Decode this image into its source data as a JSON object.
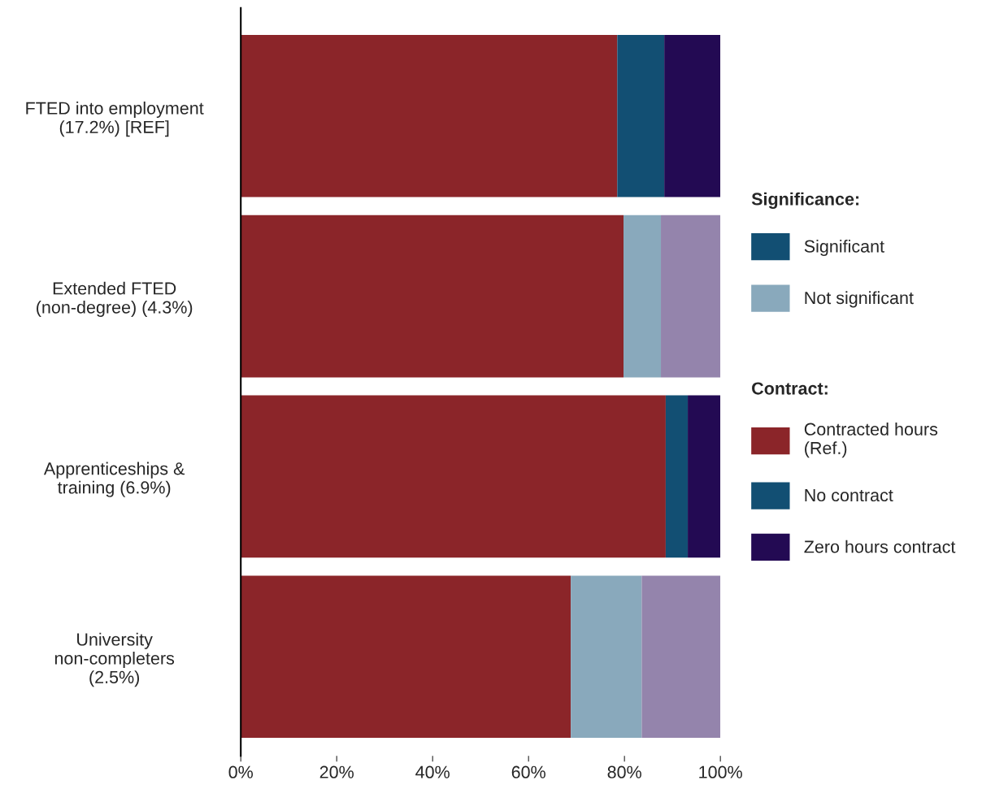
{
  "chart_data": {
    "type": "bar",
    "orientation": "horizontal",
    "stacked": true,
    "categories": [
      "FTED into employment\n(17.2%) [REF]",
      "Extended FTED\n(non-degree) (4.3%)",
      "Apprenticeships &\ntraining (6.9%)",
      "University\nnon-completers\n(2.5%)"
    ],
    "series": [
      {
        "name": "Significant",
        "color": "#124f73",
        "values": [
          null,
          null,
          null,
          null
        ]
      },
      {
        "name": "Not significant",
        "color": "#89a9bc",
        "values": [
          null,
          null,
          null,
          null
        ]
      },
      {
        "name": "Contracted hours\n(Ref.)",
        "color": "#8b2529",
        "values": [
          78.5,
          79.8,
          88.6,
          68.8
        ]
      },
      {
        "name": "No contract",
        "color": "#124f73",
        "colors": [
          "#124f73",
          "#89a9bc",
          "#124f73",
          "#89a9bc"
        ],
        "values": [
          9.8,
          7.8,
          4.6,
          14.8
        ]
      },
      {
        "name": "Zero hours contract",
        "color": "#230a53",
        "colors": [
          "#230a53",
          "#9484ac",
          "#230a53",
          "#9484ac"
        ],
        "values": [
          11.7,
          12.4,
          6.8,
          16.4
        ]
      }
    ],
    "legend_title": [
      "Significance:",
      "Contract:"
    ],
    "legend": "right",
    "xlim": [
      0,
      100
    ],
    "xticks": [
      {
        "value": 0,
        "label": "0%"
      },
      {
        "value": 20,
        "label": "20%"
      },
      {
        "value": 40,
        "label": "40%"
      },
      {
        "value": 60,
        "label": "60%"
      },
      {
        "value": 80,
        "label": "80%"
      },
      {
        "value": 100,
        "label": "100%"
      }
    ],
    "grid": false
  }
}
